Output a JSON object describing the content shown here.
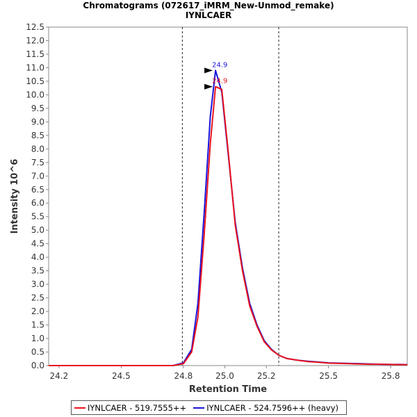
{
  "chart_data": {
    "type": "line",
    "title": "Chromatograms (072617_iMRM_New-Unmod_remake)",
    "subtitle": "IYNLCAER",
    "xlabel": "Retention Time",
    "ylabel": "Intensity 10^6",
    "xlim": [
      24.15,
      25.88
    ],
    "ylim": [
      0,
      12.5
    ],
    "x_ticks": [
      "24.2",
      "24.5",
      "24.8",
      "25.0",
      "25.2",
      "25.5",
      "25.8"
    ],
    "y_ticks": [
      "0.0",
      "0.5",
      "1.0",
      "1.5",
      "2.0",
      "2.5",
      "3.0",
      "3.5",
      "4.0",
      "4.5",
      "5.0",
      "5.5",
      "6.0",
      "6.5",
      "7.0",
      "7.5",
      "8.0",
      "8.5",
      "9.0",
      "9.5",
      "10.0",
      "10.5",
      "11.0",
      "11.5",
      "12.0",
      "12.5"
    ],
    "grid": false,
    "legend_position": "bottom",
    "boundaries": [
      24.795,
      25.26
    ],
    "series": [
      {
        "name": "IYNLCAER - 519.7555++",
        "color": "#e8131f",
        "x": [
          24.15,
          24.25,
          24.35,
          24.45,
          24.55,
          24.65,
          24.75,
          24.8,
          24.84,
          24.87,
          24.9,
          24.93,
          24.955,
          24.985,
          25.015,
          25.05,
          25.085,
          25.12,
          25.155,
          25.19,
          25.225,
          25.26,
          25.3,
          25.35,
          25.4,
          25.45,
          25.5,
          25.55,
          25.6,
          25.65,
          25.7,
          25.75,
          25.8,
          25.85,
          25.88
        ],
        "y": [
          0,
          0,
          0,
          0,
          0,
          0,
          0,
          0.07,
          0.5,
          1.8,
          4.8,
          8.2,
          10.3,
          10.2,
          8.0,
          5.2,
          3.5,
          2.2,
          1.45,
          0.88,
          0.58,
          0.38,
          0.26,
          0.2,
          0.15,
          0.12,
          0.09,
          0.08,
          0.07,
          0.06,
          0.05,
          0.05,
          0.04,
          0.03,
          0.03
        ]
      },
      {
        "name": "IYNLCAER - 524.7596++ (heavy)",
        "color": "#1a14d8",
        "x": [
          24.15,
          24.25,
          24.35,
          24.45,
          24.55,
          24.65,
          24.75,
          24.8,
          24.84,
          24.87,
          24.9,
          24.93,
          24.955,
          24.985,
          25.015,
          25.05,
          25.085,
          25.12,
          25.155,
          25.19,
          25.225,
          25.26,
          25.3,
          25.35,
          25.4,
          25.45,
          25.5,
          25.55,
          25.6,
          25.65,
          25.7,
          25.75,
          25.8,
          25.85,
          25.88
        ],
        "y": [
          0,
          0,
          0,
          0,
          0,
          0,
          0,
          0.1,
          0.6,
          2.3,
          5.6,
          9.2,
          10.9,
          10.1,
          7.9,
          5.3,
          3.6,
          2.3,
          1.5,
          0.92,
          0.6,
          0.38,
          0.26,
          0.2,
          0.16,
          0.13,
          0.1,
          0.09,
          0.08,
          0.07,
          0.06,
          0.05,
          0.04,
          0.04,
          0.03
        ]
      }
    ],
    "annotations": [
      {
        "text": "24.9",
        "series": 1,
        "x": 24.955,
        "y": 10.9
      },
      {
        "text": "24.9",
        "series": 0,
        "x": 24.955,
        "y": 10.3
      }
    ]
  }
}
